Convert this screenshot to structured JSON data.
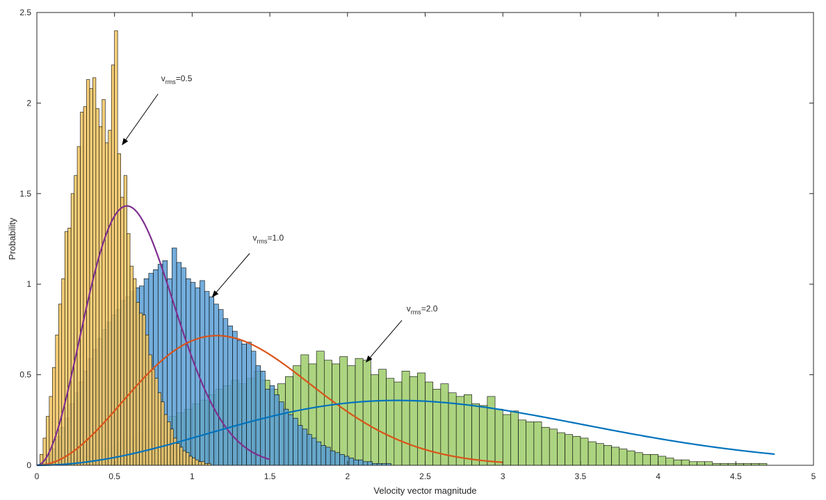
{
  "chart_data": {
    "type": "histogram",
    "xlabel": "Velocity vector magnitude",
    "ylabel": "Probability",
    "xlim": [
      0,
      5
    ],
    "ylim": [
      0,
      2.5
    ],
    "xticks": [
      "0",
      "0.5",
      "1",
      "1.5",
      "2",
      "2.5",
      "3",
      "3.5",
      "4",
      "4.5",
      "5"
    ],
    "yticks": [
      "0",
      "0.5",
      "1",
      "1.5",
      "2",
      "2.5"
    ],
    "grid": false,
    "colors": {
      "hist_green": "#9ecd6a",
      "hist_blue": "#5b9fd6",
      "hist_yellow": "#f5c660",
      "curve_purple": "#7e2f8e",
      "curve_orange": "#d95319",
      "curve_blue": "#0072bd",
      "bar_edge": "#000000"
    },
    "histograms": [
      {
        "label": "v_rms=2.0",
        "color_key": "hist_green",
        "bin_width": 0.05,
        "x_start": 0,
        "values": [
          0.0,
          0.01,
          0.02,
          0.03,
          0.04,
          0.05,
          0.05,
          0.08,
          0.09,
          0.1,
          0.12,
          0.14,
          0.16,
          0.18,
          0.2,
          0.22,
          0.24,
          0.27,
          0.29,
          0.31,
          0.34,
          0.36,
          0.39,
          0.42,
          0.44,
          0.47,
          0.45,
          0.48,
          0.52,
          0.47,
          0.42,
          0.45,
          0.49,
          0.55,
          0.61,
          0.56,
          0.63,
          0.58,
          0.56,
          0.6,
          0.55,
          0.59,
          0.58,
          0.5,
          0.53,
          0.48,
          0.46,
          0.52,
          0.49,
          0.51,
          0.46,
          0.42,
          0.45,
          0.4,
          0.38,
          0.39,
          0.34,
          0.33,
          0.38,
          0.31,
          0.28,
          0.3,
          0.25,
          0.24,
          0.24,
          0.21,
          0.2,
          0.18,
          0.17,
          0.16,
          0.15,
          0.13,
          0.12,
          0.11,
          0.1,
          0.09,
          0.08,
          0.07,
          0.06,
          0.06,
          0.05,
          0.04,
          0.03,
          0.03,
          0.02,
          0.02,
          0.02,
          0.01,
          0.01,
          0.01,
          0.01,
          0.01,
          0.01,
          0.01,
          0.0
        ],
        "titles": {
          "label": "v",
          "sub": "rms",
          "rest": "=2.0"
        }
      },
      {
        "label": "v_rms=1.0",
        "color_key": "hist_blue",
        "bin_width": 0.03,
        "x_start": 0,
        "values": [
          0.0,
          0.02,
          0.06,
          0.09,
          0.16,
          0.21,
          0.26,
          0.34,
          0.4,
          0.46,
          0.52,
          0.59,
          0.64,
          0.7,
          0.75,
          0.79,
          0.83,
          0.86,
          0.91,
          0.93,
          0.96,
          0.98,
          0.99,
          1.03,
          1.06,
          1.08,
          1.11,
          1.13,
          1.03,
          1.2,
          1.12,
          1.09,
          1.03,
          1.01,
          0.98,
          1.02,
          0.96,
          0.93,
          0.89,
          0.86,
          0.81,
          0.77,
          0.74,
          0.69,
          0.67,
          0.68,
          0.63,
          0.55,
          0.52,
          0.42,
          0.44,
          0.39,
          0.35,
          0.31,
          0.28,
          0.26,
          0.22,
          0.2,
          0.17,
          0.15,
          0.13,
          0.11,
          0.1,
          0.08,
          0.07,
          0.06,
          0.05,
          0.04,
          0.03,
          0.03,
          0.02,
          0.02,
          0.01,
          0.01,
          0.01,
          0.01,
          0.0
        ],
        "titles": {
          "label": "v",
          "sub": "rms",
          "rest": "=1.0"
        }
      },
      {
        "label": "v_rms=0.5",
        "color_key": "hist_yellow",
        "bin_width": 0.02,
        "x_start": 0,
        "values": [
          0.0,
          0.06,
          0.15,
          0.27,
          0.38,
          0.54,
          0.72,
          0.89,
          1.03,
          1.29,
          1.31,
          1.5,
          1.6,
          1.76,
          1.95,
          1.98,
          2.13,
          2.08,
          2.14,
          1.97,
          1.87,
          2.02,
          1.78,
          1.85,
          2.21,
          2.4,
          1.72,
          1.48,
          1.6,
          1.28,
          1.1,
          1.03,
          0.9,
          0.84,
          0.83,
          0.72,
          0.61,
          0.53,
          0.48,
          0.4,
          0.35,
          0.28,
          0.24,
          0.2,
          0.15,
          0.12,
          0.1,
          0.08,
          0.07,
          0.05,
          0.04,
          0.03,
          0.02,
          0.02,
          0.01,
          0.01,
          0.0
        ],
        "titles": {
          "label": "v",
          "sub": "rms",
          "rest": "=0.5"
        }
      }
    ],
    "curves": [
      {
        "label": "v_rms=0.5 fit",
        "color_key": "curve_purple",
        "sigma": 0.41,
        "x_range": [
          0,
          1.5
        ]
      },
      {
        "label": "v_rms=1.0 fit",
        "color_key": "curve_orange",
        "sigma": 0.82,
        "x_range": [
          0,
          3.0
        ]
      },
      {
        "label": "v_rms=2.0 fit",
        "color_key": "curve_blue",
        "sigma": 1.64,
        "x_range": [
          0,
          4.75
        ]
      }
    ],
    "annotations": [
      {
        "main": "v",
        "sub": "rms",
        "rest": "=0.5",
        "text_x": 0.8,
        "text_y": 2.12,
        "arrow_from": [
          0.78,
          2.05
        ],
        "arrow_to": [
          0.55,
          1.77
        ]
      },
      {
        "main": "v",
        "sub": "rms",
        "rest": "=1.0",
        "text_x": 1.39,
        "text_y": 1.24,
        "arrow_from": [
          1.37,
          1.17
        ],
        "arrow_to": [
          1.13,
          0.93
        ]
      },
      {
        "main": "v",
        "sub": "rms",
        "rest": "=2.0",
        "text_x": 2.38,
        "text_y": 0.85,
        "arrow_from": [
          2.35,
          0.8
        ],
        "arrow_to": [
          2.12,
          0.57
        ]
      }
    ]
  }
}
